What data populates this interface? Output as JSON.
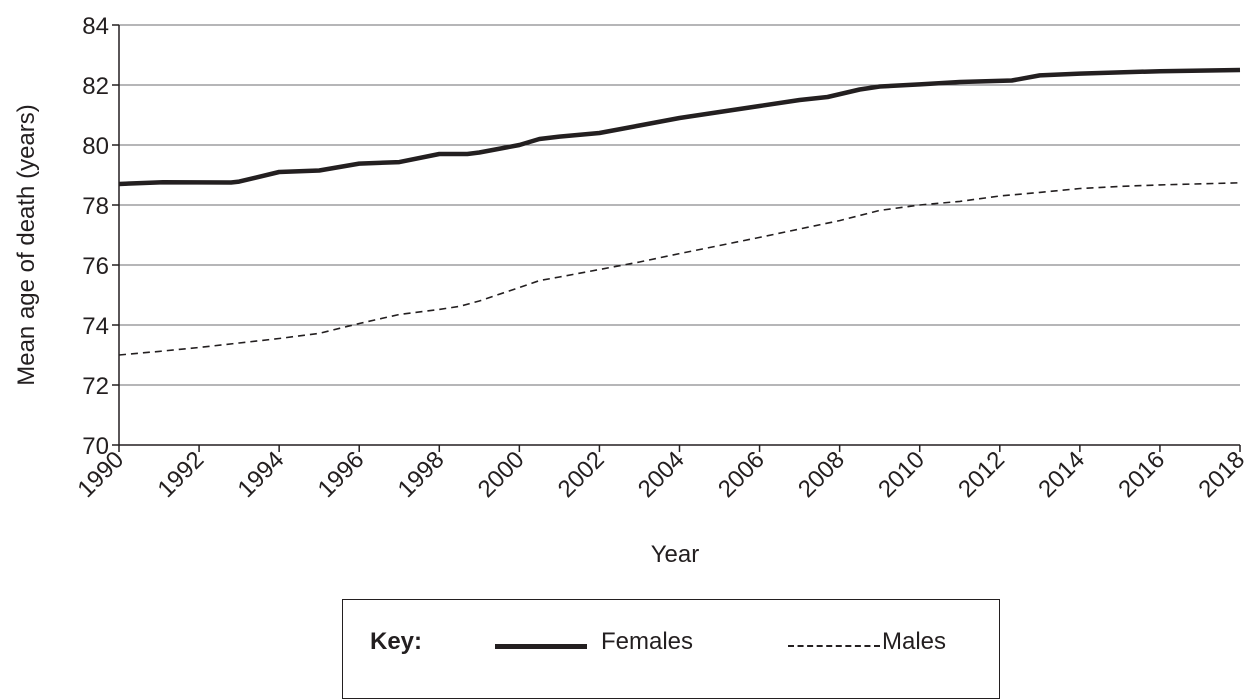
{
  "chart_data": {
    "type": "line",
    "xlabel": "Year",
    "ylabel": "Mean age of death (years)",
    "xlim": [
      1990,
      2018
    ],
    "ylim": [
      70,
      84
    ],
    "x_ticks": [
      "1990",
      "1992",
      "1994",
      "1996",
      "1998",
      "2000",
      "2002",
      "2004",
      "2006",
      "2008",
      "2010",
      "2012",
      "2014",
      "2016",
      "2018"
    ],
    "y_ticks": [
      "70",
      "72",
      "74",
      "76",
      "78",
      "80",
      "82",
      "84"
    ],
    "grid": "horizontal",
    "legend": {
      "title": "Key:",
      "position": "bottom",
      "entries": [
        "Females",
        "Males"
      ]
    },
    "series": [
      {
        "name": "Females",
        "style": "solid",
        "points": [
          [
            1990,
            78.7
          ],
          [
            1991.1,
            78.76
          ],
          [
            1992.8,
            78.75
          ],
          [
            1993,
            78.78
          ],
          [
            1994,
            79.1
          ],
          [
            1995,
            79.15
          ],
          [
            1996,
            79.38
          ],
          [
            1997,
            79.43
          ],
          [
            1998,
            79.7
          ],
          [
            1998.7,
            79.7
          ],
          [
            1999,
            79.75
          ],
          [
            2000,
            80.0
          ],
          [
            2000.5,
            80.2
          ],
          [
            2001,
            80.28
          ],
          [
            2002,
            80.4
          ],
          [
            2003,
            80.65
          ],
          [
            2004,
            80.9
          ],
          [
            2005,
            81.1
          ],
          [
            2006,
            81.3
          ],
          [
            2007,
            81.5
          ],
          [
            2007.7,
            81.6
          ],
          [
            2008.5,
            81.85
          ],
          [
            2009,
            81.95
          ],
          [
            2010,
            82.02
          ],
          [
            2011,
            82.1
          ],
          [
            2012.3,
            82.15
          ],
          [
            2013,
            82.32
          ],
          [
            2014,
            82.38
          ],
          [
            2015,
            82.42
          ],
          [
            2016,
            82.46
          ],
          [
            2018,
            82.5
          ]
        ]
      },
      {
        "name": "Males",
        "style": "dashed",
        "points": [
          [
            1990,
            73.0
          ],
          [
            1991,
            73.12
          ],
          [
            1992,
            73.25
          ],
          [
            1993,
            73.4
          ],
          [
            1994,
            73.55
          ],
          [
            1995,
            73.72
          ],
          [
            1996,
            74.05
          ],
          [
            1997,
            74.35
          ],
          [
            1998,
            74.52
          ],
          [
            1998.5,
            74.62
          ],
          [
            1999,
            74.8
          ],
          [
            2000,
            75.25
          ],
          [
            2000.5,
            75.48
          ],
          [
            2001,
            75.6
          ],
          [
            2002,
            75.85
          ],
          [
            2003,
            76.1
          ],
          [
            2004,
            76.38
          ],
          [
            2005,
            76.65
          ],
          [
            2006,
            76.92
          ],
          [
            2007,
            77.2
          ],
          [
            2008,
            77.48
          ],
          [
            2009,
            77.82
          ],
          [
            2010,
            78.0
          ],
          [
            2011,
            78.12
          ],
          [
            2012,
            78.3
          ],
          [
            2013,
            78.42
          ],
          [
            2014,
            78.55
          ],
          [
            2015,
            78.62
          ],
          [
            2016,
            78.67
          ],
          [
            2018,
            78.74
          ]
        ]
      }
    ]
  }
}
